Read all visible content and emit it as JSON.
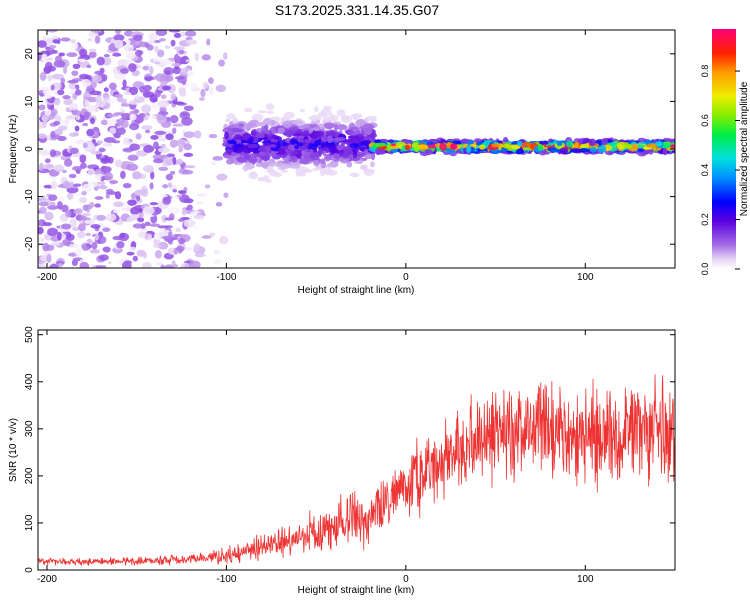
{
  "figure": {
    "title": "S173.2025.331.14.35.G07"
  },
  "chart_data": [
    {
      "type": "heatmap",
      "title": "S173.2025.331.14.35.G07",
      "xlabel": "Height of straight line (km)",
      "ylabel": "Frequency (Hz)",
      "xlim": [
        -205,
        150
      ],
      "ylim": [
        -25,
        25
      ],
      "xticks": [
        -200,
        -100,
        0,
        100
      ],
      "yticks": [
        -20,
        -10,
        0,
        10,
        20
      ],
      "colorbar": {
        "label": "Normalized spectral amplitude",
        "range": [
          0,
          0.97
        ],
        "ticks": [
          0.0,
          0.2,
          0.4,
          0.6,
          0.8
        ]
      },
      "regions": [
        {
          "name": "noise",
          "x_range": [
            -205,
            -120
          ],
          "frequency_range": [
            -25,
            25
          ],
          "amplitude": 0.05
        },
        {
          "name": "transition",
          "x_range": [
            -120,
            -100
          ],
          "frequency_range": [
            -25,
            25
          ],
          "amplitude": 0.03
        },
        {
          "name": "broadened signal",
          "x_range": [
            -100,
            -18
          ],
          "center_frequency": 1,
          "spread_hz": 6,
          "amplitude": 0.15
        },
        {
          "name": "narrow carrier",
          "x_range": [
            -18,
            150
          ],
          "center_frequency": 0.5,
          "spread_hz": 1.5,
          "amplitude": 0.6
        }
      ]
    },
    {
      "type": "line",
      "xlabel": "Height of straight line (km)",
      "ylabel": "SNR (10 * v/v)",
      "xlim": [
        -205,
        150
      ],
      "ylim": [
        0,
        510
      ],
      "xticks": [
        -200,
        -100,
        0,
        100
      ],
      "yticks": [
        0,
        100,
        200,
        300,
        400,
        500
      ],
      "color": "#ee3333",
      "series": [
        {
          "name": "SNR",
          "x": [
            -205,
            -180,
            -150,
            -120,
            -100,
            -80,
            -60,
            -40,
            -20,
            -10,
            0,
            10,
            20,
            40,
            60,
            80,
            100,
            120,
            150
          ],
          "mean": [
            18,
            18,
            19,
            22,
            30,
            50,
            70,
            90,
            115,
            150,
            175,
            200,
            235,
            275,
            295,
            300,
            285,
            290,
            300
          ],
          "spread": [
            8,
            8,
            9,
            10,
            18,
            30,
            40,
            55,
            65,
            70,
            75,
            85,
            90,
            100,
            110,
            110,
            115,
            110,
            110
          ]
        }
      ]
    }
  ],
  "colors": {
    "signal": "#ee3333",
    "axis": "#000000",
    "background": "#ffffff"
  }
}
